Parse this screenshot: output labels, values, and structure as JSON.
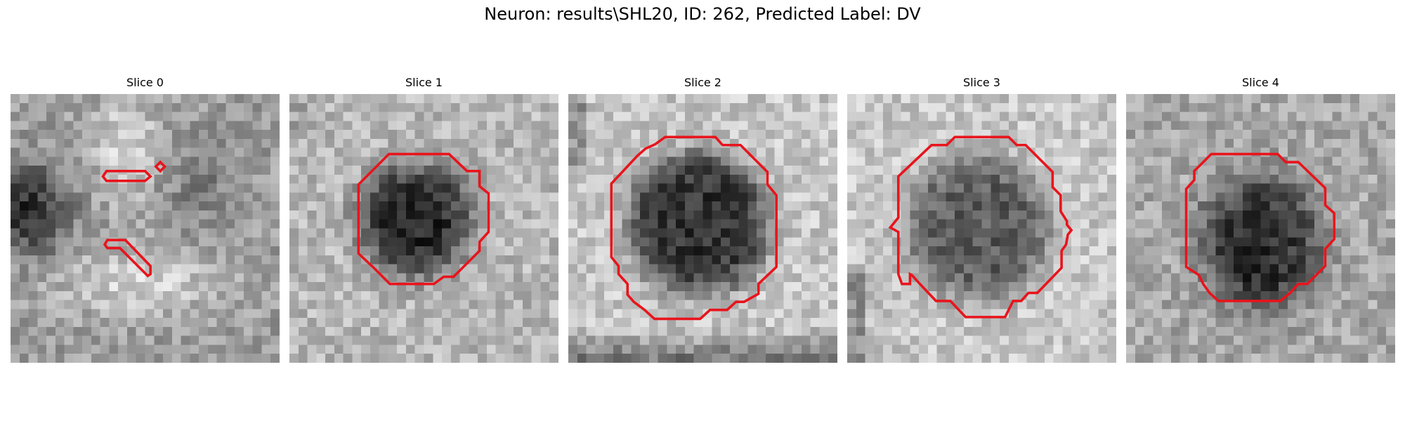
{
  "figure": {
    "title": "Neuron: results\\SHL20, ID: 262, Predicted Label: DV"
  },
  "contour_color": "#e8141c",
  "slices": [
    {
      "label": "Slice 0",
      "pattern": "dark-left-light-center",
      "contour": "fragments"
    },
    {
      "label": "Slice 1",
      "pattern": "dark-blob",
      "contour": "octagon"
    },
    {
      "label": "Slice 2",
      "pattern": "dark-blob-large",
      "contour": "octagon"
    },
    {
      "label": "Slice 3",
      "pattern": "mid-blob",
      "contour": "octagon"
    },
    {
      "label": "Slice 4",
      "pattern": "dark-lower-blob",
      "contour": "octagon"
    }
  ]
}
